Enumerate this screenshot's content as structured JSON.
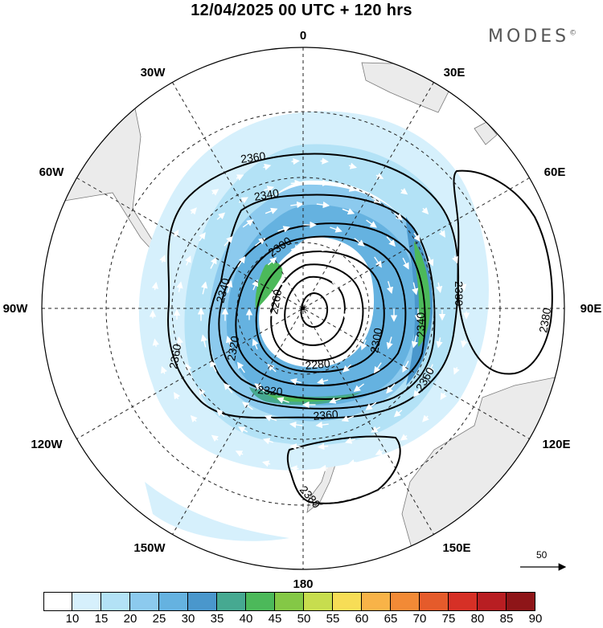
{
  "title": "12/04/2025  00 UTC  + 120 hrs",
  "brand": "MODES",
  "brand_mark": "©",
  "longitude_labels": [
    "0",
    "30E",
    "60E",
    "90E",
    "120E",
    "150E",
    "180",
    "150W",
    "120W",
    "90W",
    "60W",
    "30W"
  ],
  "contour_labels": [
    "2360",
    "2340",
    "2300",
    "2260",
    "2320",
    "2340",
    "2280",
    "2300",
    "2340",
    "2380",
    "2380",
    "2360",
    "2320",
    "2360",
    "2380",
    "2360"
  ],
  "colorbar": {
    "labels": [
      "10",
      "15",
      "20",
      "25",
      "30",
      "35",
      "40",
      "45",
      "50",
      "55",
      "60",
      "65",
      "70",
      "75",
      "80",
      "85",
      "90"
    ],
    "colors": [
      "#ffffff",
      "#d6f0fc",
      "#b3e2f6",
      "#8ccaee",
      "#65b2e0",
      "#4a97cc",
      "#46a991",
      "#4cb95a",
      "#84c846",
      "#c7dd4e",
      "#f7dd56",
      "#f8b348",
      "#f28a36",
      "#e55b2b",
      "#d63026",
      "#b81e22",
      "#8e1518"
    ]
  },
  "reference_vector": "50",
  "colors": {
    "land": "#ebebeb",
    "grid": "#222222",
    "contour": "#000000",
    "arrow": "#ffffff"
  }
}
